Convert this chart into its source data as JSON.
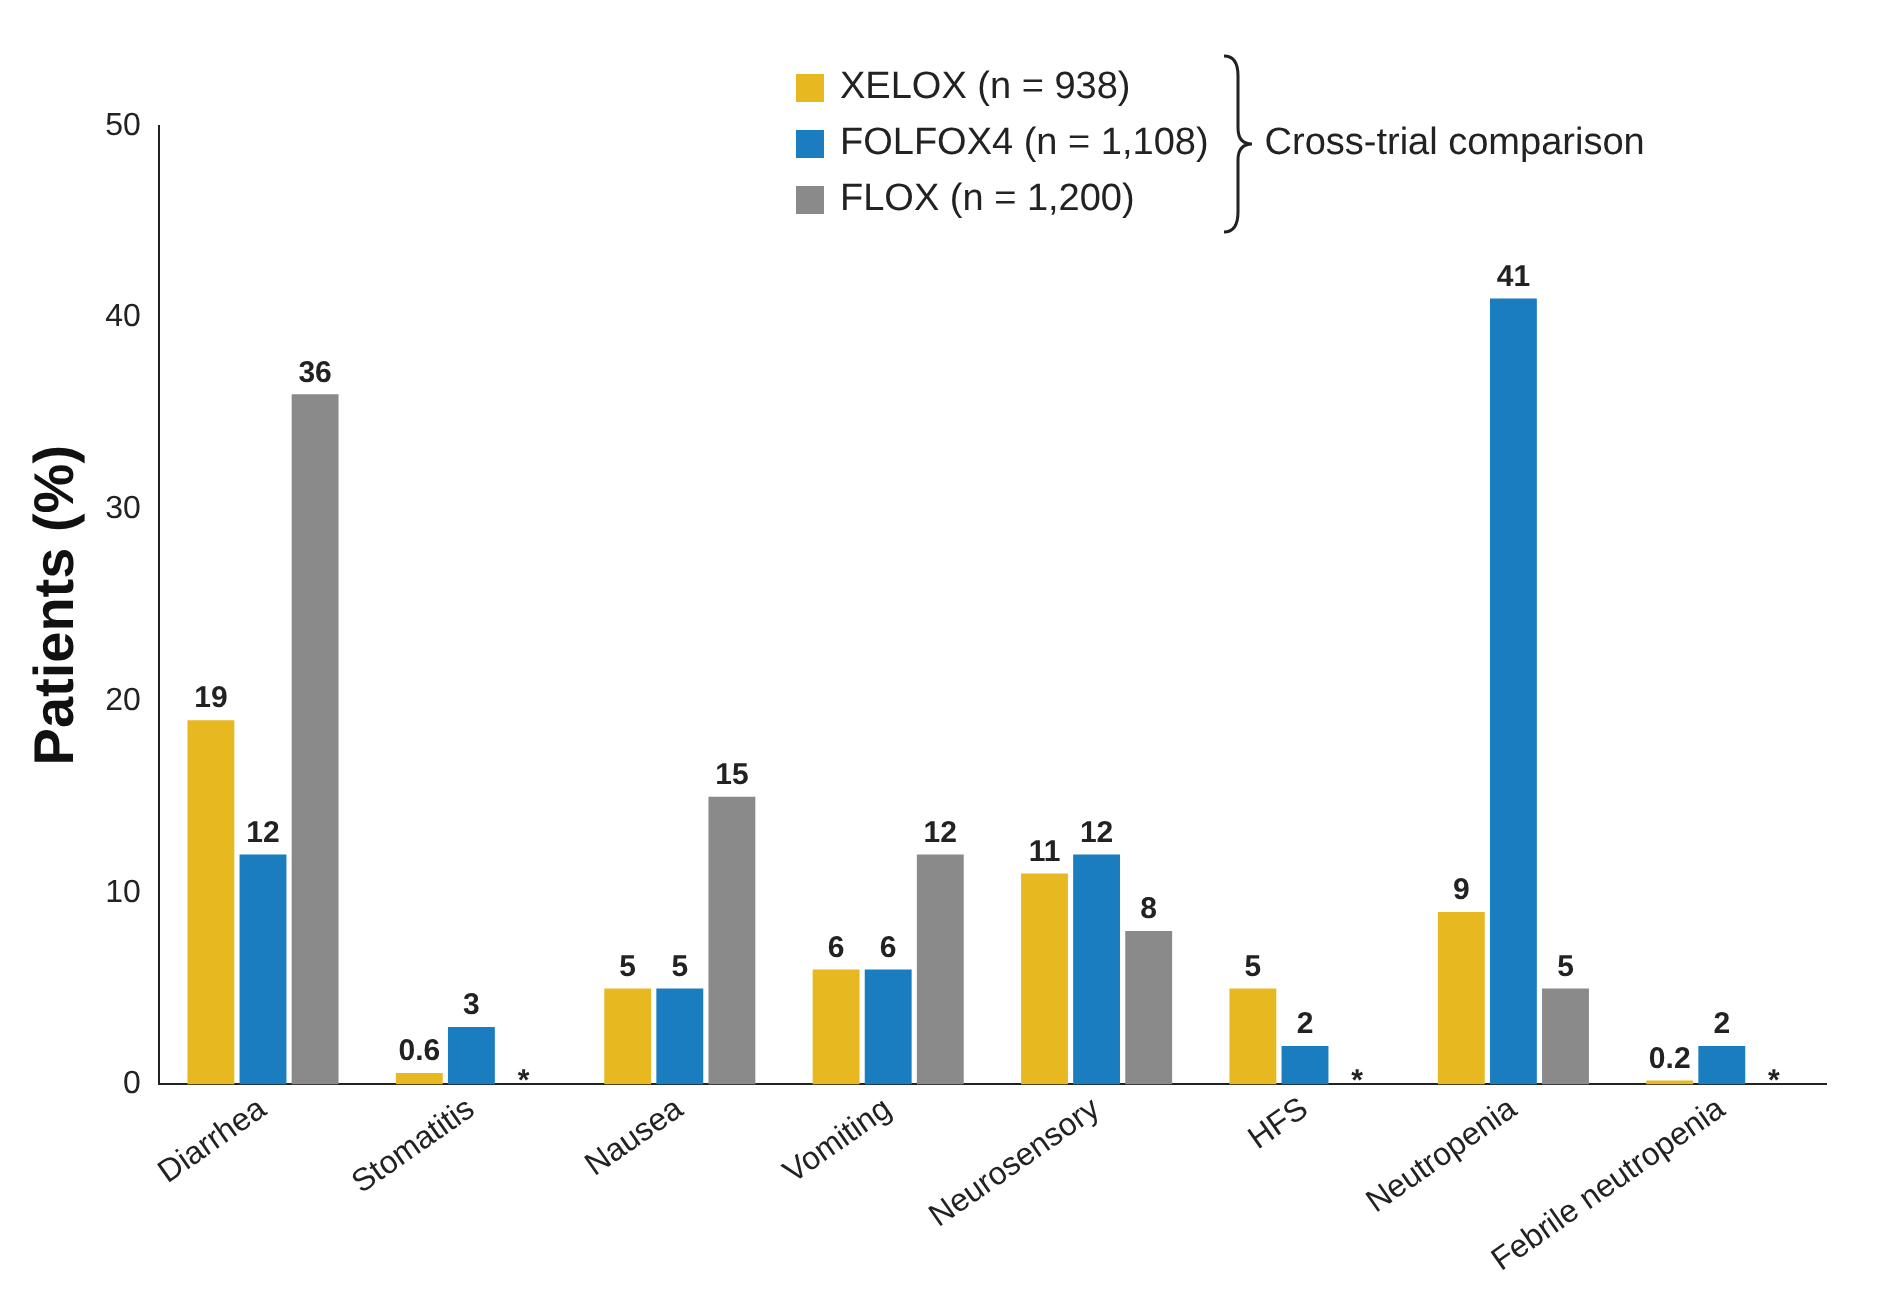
{
  "chart_data": {
    "type": "bar",
    "ylabel": "Patients (%)",
    "categories": [
      "Diarrhea",
      "Stomatitis",
      "Nausea",
      "Vomiting",
      "Neurosensory",
      "HFS",
      "Neutropenia",
      "Febrile neutropenia"
    ],
    "series": [
      {
        "name": "XELOX (n = 938)",
        "color": "#e8b820",
        "values": [
          19,
          0.6,
          5,
          6,
          11,
          5,
          9,
          0.2
        ],
        "value_labels": [
          "19",
          "0.6",
          "5",
          "6",
          "11",
          "5",
          "9",
          "0.2"
        ]
      },
      {
        "name": "FOLFOX4 (n = 1,108)",
        "color": "#1a7dc0",
        "values": [
          12,
          3,
          5,
          6,
          12,
          2,
          41,
          2
        ],
        "value_labels": [
          "12",
          "3",
          "5",
          "6",
          "12",
          "2",
          "41",
          "2"
        ]
      },
      {
        "name": "FLOX (n = 1,200)",
        "color": "#8a8a8a",
        "values": [
          36,
          null,
          15,
          12,
          8,
          null,
          5,
          null
        ],
        "value_labels": [
          "36",
          "*",
          "15",
          "12",
          "8",
          "*",
          "5",
          "*"
        ]
      }
    ],
    "ylim": [
      0,
      50
    ],
    "yticks": [
      0,
      10,
      20,
      30,
      40,
      50
    ],
    "grid": false,
    "legend": "top right",
    "annotations": [
      "Cross-trial comparison"
    ]
  }
}
